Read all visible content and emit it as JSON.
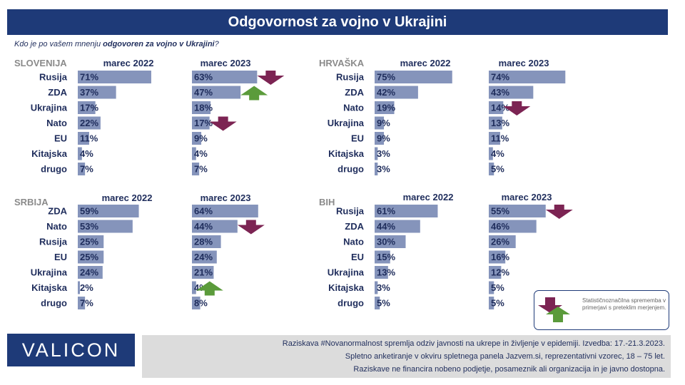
{
  "title": "Odgovornost za vojno v Ukrajini",
  "subtitle_pre": "Kdo je po vašem mnenju ",
  "subtitle_bold": "odgovoren za vojno v Ukrajini",
  "subtitle_post": "?",
  "legend_text": "Statističnoznačilna sprememba v primerjavi s preteklim merjenjem.",
  "logo": "VALICON",
  "footer_lines": [
    "Raziskava #Novanormalnost spremlja odziv javnosti na ukrepe in življenje v epidemiji. Izvedba: 17.-21.3.2023.",
    "Spletno anketiranje v okviru spletnega panela Jazvem.si, reprezentativni vzorec, 18 – 75 let.",
    "Raziskave ne financira nobeno podjetje, posameznik ali organizacija in je javno dostopna."
  ],
  "colors": {
    "bar": "#8594bb",
    "arrow_down": "#7c2453",
    "arrow_up": "#5b9b3b",
    "header": "#1e3a78"
  },
  "chart_data": [
    {
      "type": "bar",
      "title": "SLOVENIJA",
      "categories": [
        "Rusija",
        "ZDA",
        "Ukrajina",
        "Nato",
        "EU",
        "Kitajska",
        "drugo"
      ],
      "series": [
        {
          "name": "marec 2022",
          "values": [
            71,
            37,
            17,
            22,
            11,
            4,
            7
          ]
        },
        {
          "name": "marec 2023",
          "values": [
            63,
            47,
            18,
            17,
            9,
            4,
            7
          ],
          "change": [
            "down",
            "up",
            null,
            "down",
            null,
            null,
            null
          ]
        }
      ]
    },
    {
      "type": "bar",
      "title": "HRVAŠKA",
      "categories": [
        "Rusija",
        "ZDA",
        "Nato",
        "Ukrajina",
        "EU",
        "Kitajska",
        "drugo"
      ],
      "series": [
        {
          "name": "marec 2022",
          "values": [
            75,
            42,
            19,
            9,
            9,
            3,
            3
          ]
        },
        {
          "name": "marec 2023",
          "values": [
            74,
            43,
            14,
            13,
            11,
            4,
            5
          ],
          "change": [
            null,
            null,
            "down",
            null,
            null,
            null,
            null
          ]
        }
      ]
    },
    {
      "type": "bar",
      "title": "SRBIJA",
      "categories": [
        "ZDA",
        "Nato",
        "Rusija",
        "EU",
        "Ukrajina",
        "Kitajska",
        "drugo"
      ],
      "series": [
        {
          "name": "marec 2022",
          "values": [
            59,
            53,
            25,
            25,
            24,
            2,
            7
          ]
        },
        {
          "name": "marec 2023",
          "values": [
            64,
            44,
            28,
            24,
            21,
            4,
            8
          ],
          "change": [
            null,
            "down",
            null,
            null,
            null,
            "up",
            null
          ]
        }
      ]
    },
    {
      "type": "bar",
      "title": "BIH",
      "categories": [
        "Rusija",
        "ZDA",
        "Nato",
        "EU",
        "Ukrajina",
        "Kitajska",
        "drugo"
      ],
      "series": [
        {
          "name": "marec 2022",
          "values": [
            61,
            44,
            30,
            15,
            13,
            3,
            5
          ]
        },
        {
          "name": "marec 2023",
          "values": [
            55,
            46,
            26,
            16,
            12,
            5,
            5
          ],
          "change": [
            "down",
            null,
            null,
            null,
            null,
            null,
            null
          ]
        }
      ]
    }
  ]
}
